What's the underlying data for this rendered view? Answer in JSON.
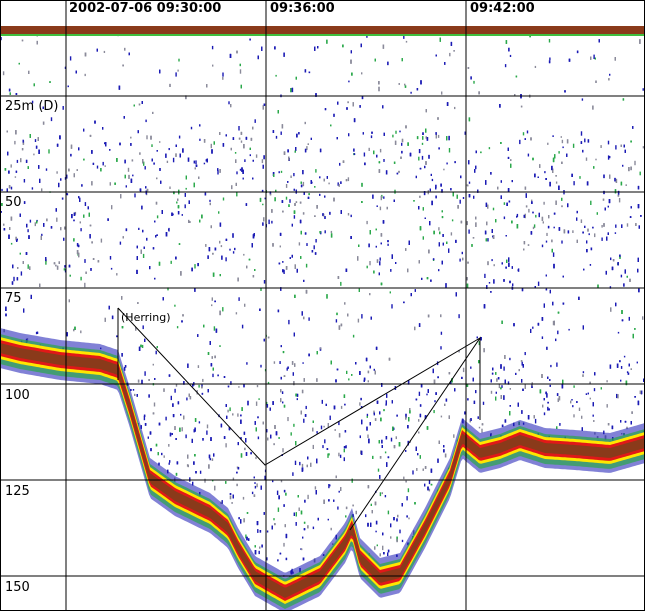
{
  "echogram": {
    "time_labels": [
      "2002-07-06 09:30:00",
      "09:36:00",
      "09:42:00"
    ],
    "depth_unit_label": "25m (D)",
    "depth_labels": [
      "50",
      "75",
      "100",
      "125",
      "150"
    ],
    "annotation": "(Herring)",
    "colors": {
      "background": "#ffffff",
      "grid": "#000000",
      "weak_echo": "#1a1ab4",
      "medium_echo": "#2aa84a",
      "strong_echo": "#ffe600",
      "very_strong_echo": "#e01818",
      "bottom": "#8a3a1a",
      "surface_green": "#3fbf3f"
    }
  }
}
